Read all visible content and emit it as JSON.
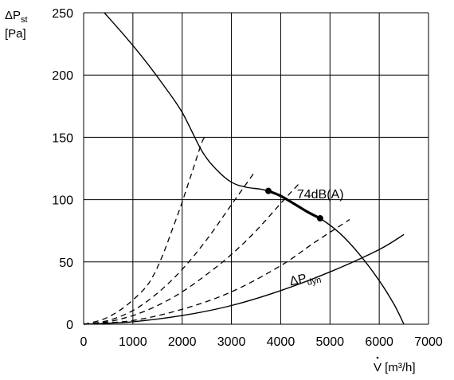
{
  "chart_data": {
    "type": "line",
    "title": "",
    "ylabel": {
      "symbol": "ΔP",
      "sub": "st",
      "unit": "[Pa]"
    },
    "xlabel": {
      "symbol": "V",
      "rest": " [m³/h]"
    },
    "xlim": [
      0,
      7000
    ],
    "ylim": [
      0,
      250
    ],
    "x_ticks": [
      0,
      1000,
      2000,
      3000,
      4000,
      5000,
      6000,
      7000
    ],
    "y_ticks": [
      0,
      50,
      100,
      150,
      200,
      250
    ],
    "grid": true,
    "series": [
      {
        "style": "solid",
        "points": [
          [
            420,
            250
          ],
          [
            800,
            233
          ],
          [
            1200,
            214
          ],
          [
            1600,
            193
          ],
          [
            2000,
            170
          ],
          [
            2400,
            139
          ],
          [
            2700,
            124
          ],
          [
            3000,
            114
          ],
          [
            3300,
            110
          ],
          [
            3750,
            107
          ],
          [
            4200,
            98
          ],
          [
            4800,
            85
          ],
          [
            5200,
            73
          ],
          [
            5600,
            56
          ],
          [
            6000,
            35
          ],
          [
            6300,
            16
          ],
          [
            6500,
            0
          ]
        ]
      },
      {
        "style": "bold",
        "points": [
          [
            3750,
            107
          ],
          [
            4000,
            103
          ],
          [
            4300,
            96
          ],
          [
            4550,
            90
          ],
          [
            4800,
            85
          ]
        ],
        "markers": [
          [
            3750,
            107
          ],
          [
            4800,
            85
          ]
        ]
      },
      {
        "style": "dashed",
        "points": [
          [
            0,
            0
          ],
          [
            400,
            4
          ],
          [
            800,
            13
          ],
          [
            1200,
            27
          ],
          [
            1400,
            38
          ],
          [
            1600,
            55
          ],
          [
            1800,
            76
          ],
          [
            2000,
            98
          ],
          [
            2200,
            122
          ],
          [
            2400,
            146
          ],
          [
            2470,
            150
          ]
        ]
      },
      {
        "style": "dashed",
        "points": [
          [
            0,
            0
          ],
          [
            500,
            3
          ],
          [
            1000,
            11
          ],
          [
            1500,
            25
          ],
          [
            2000,
            44
          ],
          [
            2500,
            68
          ],
          [
            3000,
            96
          ],
          [
            3450,
            121
          ]
        ]
      },
      {
        "style": "dashed",
        "points": [
          [
            0,
            0
          ],
          [
            500,
            2
          ],
          [
            1000,
            7
          ],
          [
            1500,
            15
          ],
          [
            2000,
            26
          ],
          [
            2500,
            40
          ],
          [
            3000,
            56
          ],
          [
            3500,
            75
          ],
          [
            4000,
            97
          ],
          [
            4400,
            114
          ]
        ]
      },
      {
        "style": "dashed",
        "points": [
          [
            0,
            0
          ],
          [
            1000,
            3
          ],
          [
            2000,
            12
          ],
          [
            3000,
            26
          ],
          [
            4000,
            47
          ],
          [
            4700,
            66
          ],
          [
            5400,
            84
          ]
        ]
      },
      {
        "name": "ΔPdyn",
        "style": "solid",
        "points": [
          [
            0,
            0
          ],
          [
            1000,
            2
          ],
          [
            2000,
            7
          ],
          [
            3000,
            15
          ],
          [
            4000,
            27
          ],
          [
            5000,
            42
          ],
          [
            6000,
            60
          ],
          [
            6500,
            72
          ]
        ]
      }
    ],
    "annotations": [
      {
        "text": "74dB(A)",
        "x": 4330,
        "y": 101
      },
      {
        "text": "ΔP",
        "sub": "dyn",
        "x": 4200,
        "y": 31
      }
    ]
  }
}
